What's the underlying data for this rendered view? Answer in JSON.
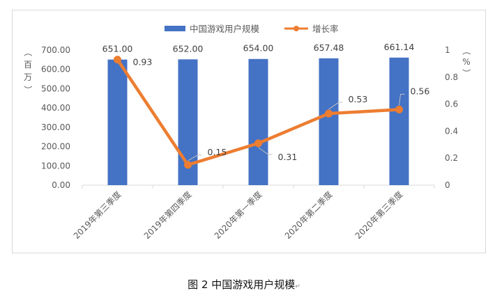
{
  "chart_data": {
    "type": "bar",
    "categories": [
      "2019年第三季度",
      "2019年第四季度",
      "2020年第一季度",
      "2020年第二季度",
      "2020年第三季度"
    ],
    "series": [
      {
        "name": "中国游戏用户规模",
        "type": "bar",
        "axis": "left",
        "values": [
          651.0,
          652.0,
          654.0,
          657.48,
          661.14
        ],
        "labels": [
          "651.00",
          "652.00",
          "654.00",
          "657.48",
          "661.14"
        ],
        "color": "#4472c4"
      },
      {
        "name": "增长率",
        "type": "line",
        "axis": "right",
        "values": [
          0.93,
          0.15,
          0.31,
          0.53,
          0.56
        ],
        "labels": [
          "0.93",
          "0.15",
          "0.31",
          "0.53",
          "0.56"
        ],
        "color": "#ed7d31"
      }
    ],
    "ylabel_left": "（百万）",
    "ylabel_right": "（%）",
    "ylim_left": [
      0,
      700
    ],
    "yticks_left": [
      "0.00",
      "100.00",
      "200.00",
      "300.00",
      "400.00",
      "500.00",
      "600.00",
      "700.00"
    ],
    "ylim_right": [
      0,
      1
    ],
    "yticks_right": [
      "0",
      "0.2",
      "0.4",
      "0.6",
      "0.8",
      "1"
    ],
    "legend_position": "top",
    "grid": false
  },
  "caption": "图 2 中国游戏用户规模",
  "caption_mark": "↵"
}
